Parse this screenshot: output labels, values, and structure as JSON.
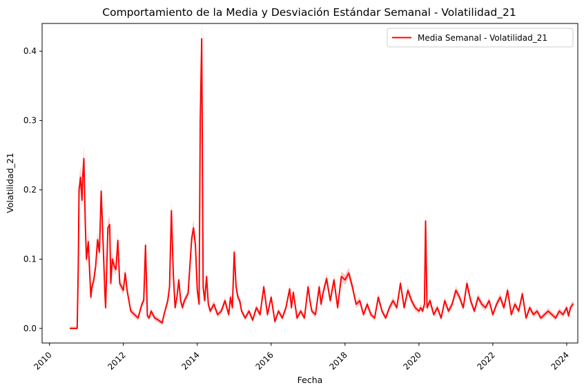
{
  "chart_data": {
    "type": "line",
    "title": "Comportamiento de la Media y Desviación Estándar Semanal - Volatilidad_21",
    "xlabel": "Fecha",
    "ylabel": "Volatilidad_21",
    "xlim": [
      2009.8,
      2024.3
    ],
    "ylim": [
      -0.021,
      0.44
    ],
    "x_ticks": [
      2010,
      2012,
      2014,
      2016,
      2018,
      2020,
      2022,
      2024
    ],
    "x_tick_labels": [
      "2010",
      "2012",
      "2014",
      "2016",
      "2018",
      "2020",
      "2022",
      "2024"
    ],
    "y_ticks": [
      0.0,
      0.1,
      0.2,
      0.3,
      0.4
    ],
    "y_tick_labels": [
      "0.0",
      "0.1",
      "0.2",
      "0.3",
      "0.4"
    ],
    "grid": false,
    "legend_position": "top-right",
    "colors": {
      "line": "#ff0000",
      "band": "#f4a6a6"
    },
    "series": [
      {
        "name": "Media Semanal - Volatilidad_21",
        "x": [
          2010.55,
          2010.75,
          2010.78,
          2010.8,
          2010.84,
          2010.88,
          2010.9,
          2010.93,
          2010.97,
          2011.0,
          2011.05,
          2011.08,
          2011.12,
          2011.15,
          2011.2,
          2011.25,
          2011.3,
          2011.35,
          2011.4,
          2011.45,
          2011.5,
          2011.52,
          2011.58,
          2011.63,
          2011.66,
          2011.7,
          2011.75,
          2011.8,
          2011.85,
          2011.9,
          2011.95,
          2012.0,
          2012.05,
          2012.1,
          2012.15,
          2012.2,
          2012.3,
          2012.4,
          2012.5,
          2012.55,
          2012.6,
          2012.65,
          2012.7,
          2012.75,
          2012.85,
          2012.95,
          2013.05,
          2013.1,
          2013.15,
          2013.2,
          2013.25,
          2013.3,
          2013.35,
          2013.4,
          2013.45,
          2013.5,
          2013.55,
          2013.6,
          2013.65,
          2013.7,
          2013.75,
          2013.8,
          2013.85,
          2013.9,
          2013.95,
          2014.0,
          2014.05,
          2014.08,
          2014.12,
          2014.16,
          2014.2,
          2014.25,
          2014.3,
          2014.35,
          2014.45,
          2014.55,
          2014.65,
          2014.75,
          2014.85,
          2014.9,
          2014.95,
          2015.0,
          2015.05,
          2015.1,
          2015.15,
          2015.2,
          2015.3,
          2015.4,
          2015.5,
          2015.6,
          2015.7,
          2015.8,
          2015.9,
          2016.0,
          2016.1,
          2016.2,
          2016.3,
          2016.4,
          2016.5,
          2016.55,
          2016.6,
          2016.7,
          2016.8,
          2016.9,
          2017.0,
          2017.05,
          2017.1,
          2017.2,
          2017.3,
          2017.35,
          2017.4,
          2017.5,
          2017.6,
          2017.7,
          2017.8,
          2017.9,
          2018.0,
          2018.1,
          2018.2,
          2018.3,
          2018.4,
          2018.5,
          2018.6,
          2018.7,
          2018.8,
          2018.9,
          2019.0,
          2019.1,
          2019.2,
          2019.3,
          2019.4,
          2019.5,
          2019.6,
          2019.7,
          2019.8,
          2019.9,
          2020.0,
          2020.05,
          2020.1,
          2020.15,
          2020.18,
          2020.22,
          2020.3,
          2020.4,
          2020.5,
          2020.6,
          2020.7,
          2020.8,
          2020.9,
          2021.0,
          2021.1,
          2021.2,
          2021.3,
          2021.4,
          2021.5,
          2021.6,
          2021.7,
          2021.8,
          2021.9,
          2022.0,
          2022.1,
          2022.2,
          2022.3,
          2022.4,
          2022.5,
          2022.6,
          2022.7,
          2022.8,
          2022.9,
          2023.0,
          2023.1,
          2023.2,
          2023.3,
          2023.4,
          2023.5,
          2023.6,
          2023.7,
          2023.8,
          2023.9,
          2024.0,
          2024.05,
          2024.1,
          2024.18
        ],
        "values": [
          0.0,
          0.0,
          0.09,
          0.2,
          0.218,
          0.185,
          0.22,
          0.245,
          0.15,
          0.1,
          0.125,
          0.09,
          0.045,
          0.06,
          0.07,
          0.09,
          0.128,
          0.11,
          0.198,
          0.125,
          0.05,
          0.03,
          0.145,
          0.15,
          0.065,
          0.1,
          0.09,
          0.085,
          0.127,
          0.065,
          0.06,
          0.055,
          0.08,
          0.055,
          0.04,
          0.025,
          0.02,
          0.015,
          0.035,
          0.04,
          0.12,
          0.018,
          0.015,
          0.025,
          0.015,
          0.012,
          0.008,
          0.02,
          0.03,
          0.04,
          0.06,
          0.17,
          0.08,
          0.03,
          0.045,
          0.07,
          0.04,
          0.03,
          0.04,
          0.045,
          0.05,
          0.09,
          0.13,
          0.145,
          0.12,
          0.055,
          0.035,
          0.3,
          0.418,
          0.06,
          0.04,
          0.075,
          0.035,
          0.025,
          0.035,
          0.02,
          0.025,
          0.04,
          0.02,
          0.045,
          0.03,
          0.11,
          0.06,
          0.045,
          0.04,
          0.025,
          0.015,
          0.025,
          0.012,
          0.03,
          0.02,
          0.06,
          0.02,
          0.045,
          0.01,
          0.025,
          0.015,
          0.03,
          0.057,
          0.03,
          0.052,
          0.015,
          0.025,
          0.015,
          0.06,
          0.04,
          0.025,
          0.02,
          0.06,
          0.035,
          0.05,
          0.072,
          0.04,
          0.07,
          0.03,
          0.075,
          0.07,
          0.08,
          0.06,
          0.035,
          0.04,
          0.02,
          0.035,
          0.02,
          0.015,
          0.045,
          0.025,
          0.015,
          0.03,
          0.04,
          0.03,
          0.065,
          0.03,
          0.055,
          0.04,
          0.03,
          0.025,
          0.03,
          0.025,
          0.035,
          0.155,
          0.03,
          0.04,
          0.02,
          0.03,
          0.015,
          0.04,
          0.025,
          0.035,
          0.055,
          0.045,
          0.03,
          0.065,
          0.04,
          0.025,
          0.045,
          0.035,
          0.03,
          0.04,
          0.02,
          0.035,
          0.045,
          0.03,
          0.055,
          0.02,
          0.035,
          0.025,
          0.05,
          0.015,
          0.03,
          0.02,
          0.025,
          0.015,
          0.02,
          0.025,
          0.02,
          0.015,
          0.025,
          0.02,
          0.03,
          0.018,
          0.03,
          0.036
        ]
      }
    ]
  }
}
